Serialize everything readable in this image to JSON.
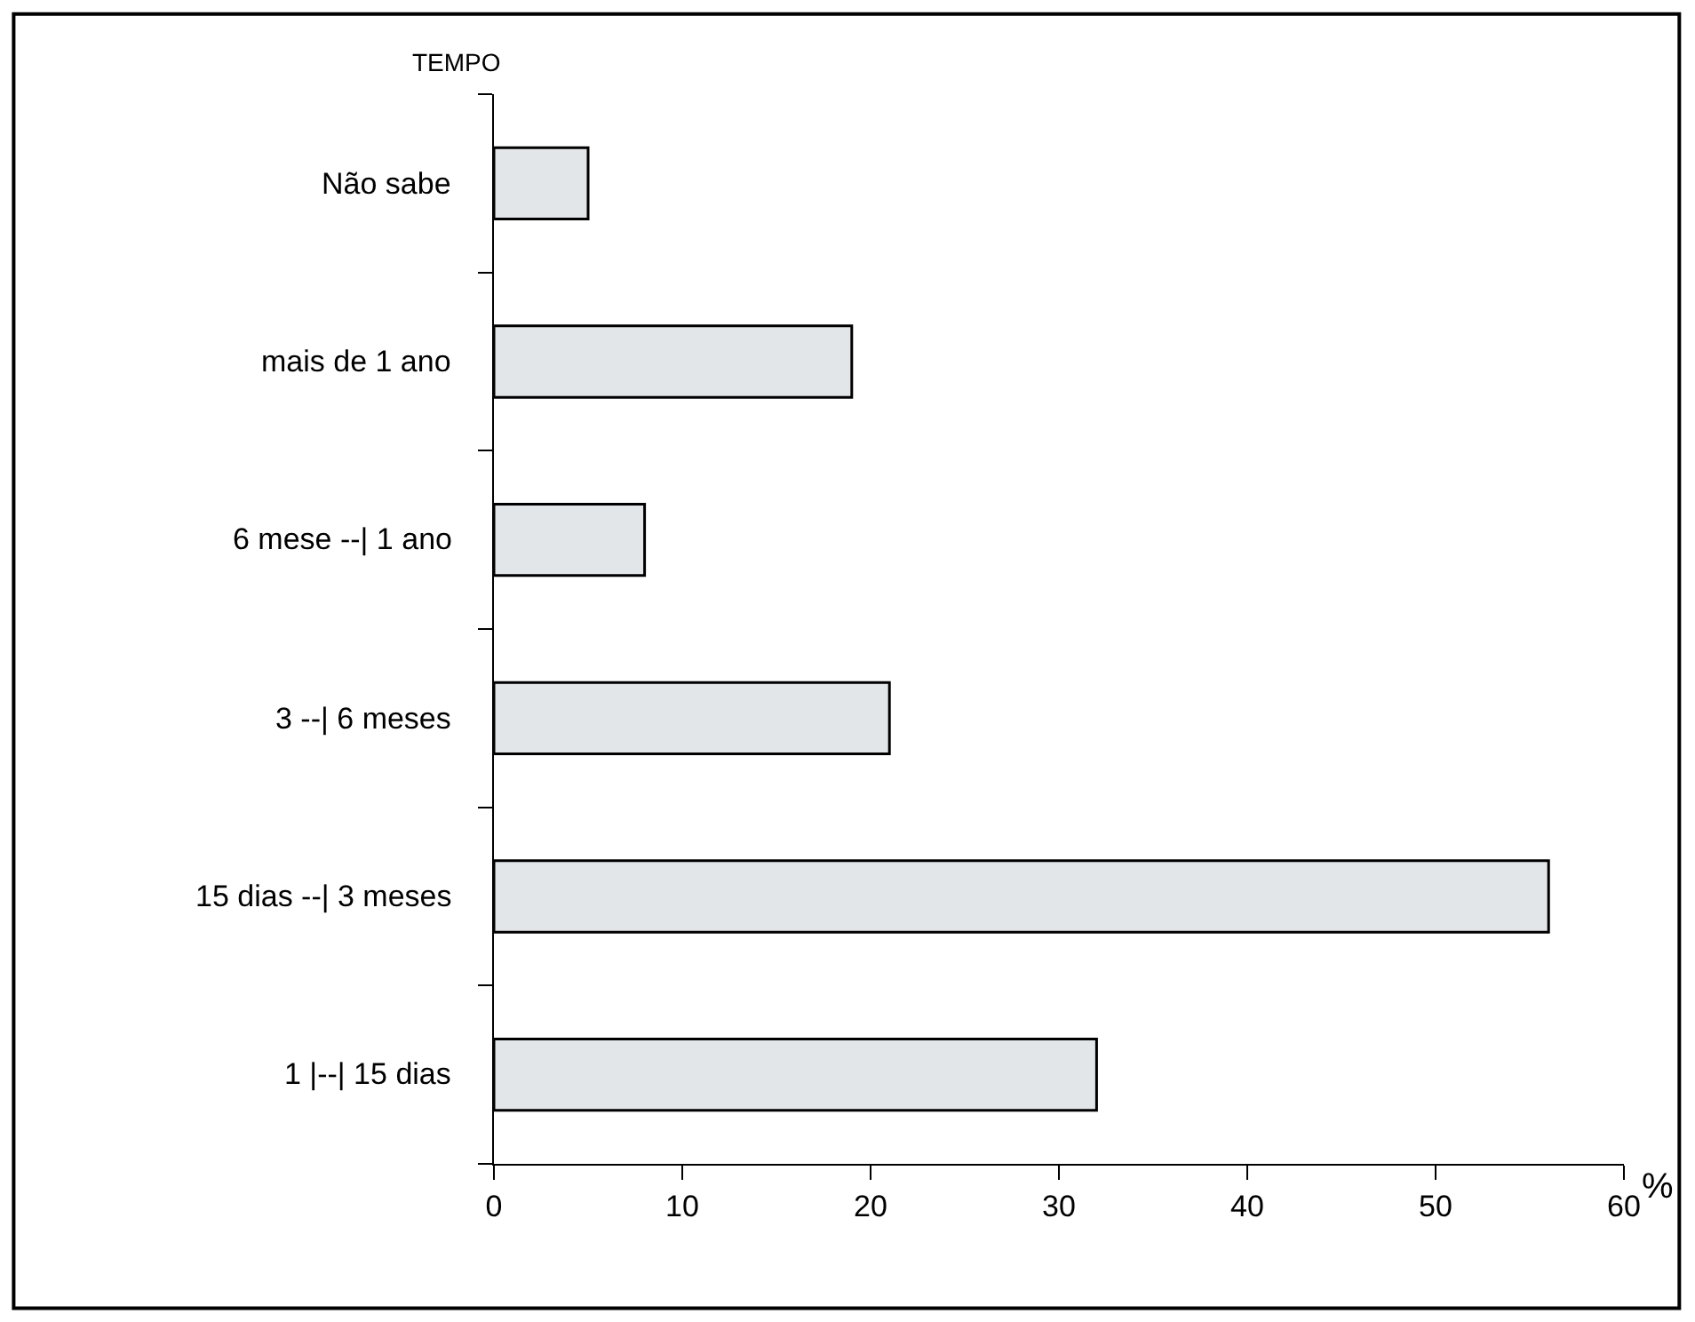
{
  "chart_data": {
    "type": "bar",
    "orientation": "horizontal",
    "ylabel": "TEMPO",
    "xlabel": "%",
    "categories": [
      "Não sabe",
      "mais de 1 ano",
      "6 mese --| 1 ano",
      "3 --| 6 meses",
      "15 dias --| 3 meses",
      "1 |--| 15 dias"
    ],
    "values": [
      5,
      19,
      8,
      21,
      56,
      32
    ],
    "color": "#e3e6e9",
    "xlim": [
      0,
      60
    ],
    "xticks": [
      0,
      10,
      20,
      30,
      40,
      50,
      60
    ]
  }
}
